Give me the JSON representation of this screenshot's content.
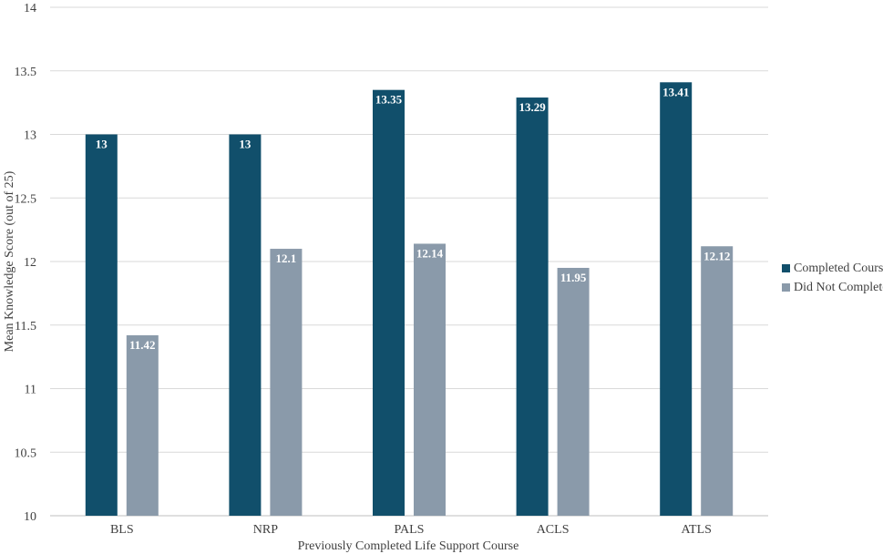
{
  "chart_data": {
    "type": "bar",
    "title": "",
    "xlabel": "Previously Completed Life Support Course",
    "ylabel": "Mean Knowledge Score (out of 25)",
    "categories": [
      "BLS",
      "NRP",
      "PALS",
      "ACLS",
      "ATLS"
    ],
    "series": [
      {
        "name": "Completed Course",
        "color": "#114f6b",
        "values": [
          13,
          13,
          13.35,
          13.29,
          13.41
        ],
        "labels": [
          "13",
          "13",
          "13.35",
          "13.29",
          "13.41"
        ]
      },
      {
        "name": "Did Not Complete",
        "color": "#8a9aaa",
        "values": [
          11.42,
          12.1,
          12.14,
          11.95,
          12.12
        ],
        "labels": [
          "11.42",
          "12.1",
          "12.14",
          "11.95",
          "12.12"
        ]
      }
    ],
    "ylim": [
      10,
      14
    ],
    "yticks": [
      "10",
      "10.5",
      "11",
      "11.5",
      "12",
      "12.5",
      "13",
      "13.5",
      "14"
    ],
    "grid": true,
    "legend_position": "right"
  }
}
